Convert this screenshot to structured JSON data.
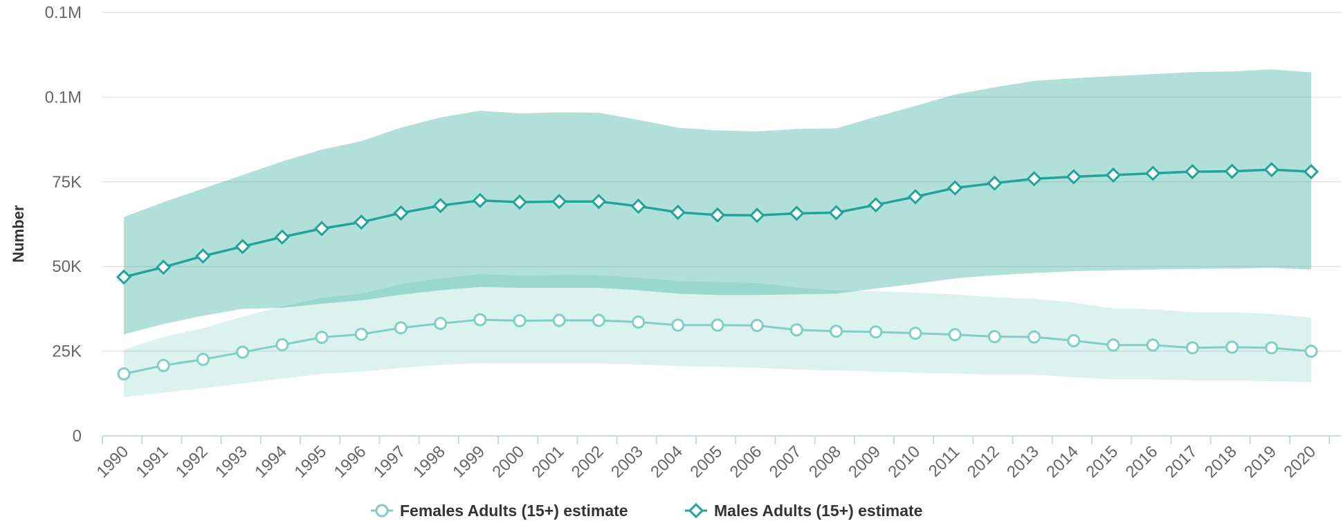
{
  "chart_data": {
    "type": "line",
    "ylabel": "Number",
    "ylim": [
      0,
      125000
    ],
    "y_ticks": [
      {
        "value": 0,
        "label": "0"
      },
      {
        "value": 25000,
        "label": "25K"
      },
      {
        "value": 50000,
        "label": "50K"
      },
      {
        "value": 75000,
        "label": "75K"
      },
      {
        "value": 100000,
        "label": "0.1M"
      },
      {
        "value": 125000,
        "label": "0.1M"
      }
    ],
    "grid": true,
    "legend_position": "bottom-center",
    "x": [
      "1990",
      "1991",
      "1992",
      "1993",
      "1994",
      "1995",
      "1996",
      "1997",
      "1998",
      "1999",
      "2000",
      "2001",
      "2002",
      "2003",
      "2004",
      "2005",
      "2006",
      "2007",
      "2008",
      "2009",
      "2010",
      "2011",
      "2012",
      "2013",
      "2014",
      "2015",
      "2016",
      "2017",
      "2018",
      "2019",
      "2020"
    ],
    "series": [
      {
        "name": "Females Adults (15+) estimate",
        "color": "#7ecfc4",
        "marker": "circle",
        "values": [
          18300,
          20800,
          22600,
          24700,
          26900,
          29100,
          30000,
          31900,
          33200,
          34300,
          34000,
          34100,
          34100,
          33600,
          32700,
          32700,
          32600,
          31300,
          30900,
          30700,
          30300,
          29900,
          29300,
          29200,
          28100,
          26800,
          26800,
          26000,
          26200,
          26000,
          25000
        ],
        "lower": [
          11500,
          12800,
          14100,
          15500,
          16900,
          18300,
          19000,
          20100,
          21000,
          21500,
          21400,
          21400,
          21400,
          21100,
          20600,
          20400,
          20100,
          19600,
          19300,
          19000,
          18700,
          18400,
          18100,
          18100,
          17300,
          16700,
          16700,
          16400,
          16400,
          16100,
          15800
        ],
        "upper": [
          25500,
          29200,
          31800,
          35200,
          38200,
          40800,
          42000,
          44800,
          46500,
          47800,
          47300,
          47500,
          47400,
          46700,
          45700,
          45400,
          45200,
          43800,
          43000,
          42700,
          42300,
          41800,
          40900,
          40500,
          39400,
          37600,
          37400,
          36500,
          36500,
          36000,
          34900
        ]
      },
      {
        "name": "Males Adults (15+) estimate",
        "color": "#1fa596",
        "marker": "diamond",
        "values": [
          46900,
          49800,
          53100,
          55900,
          58700,
          61200,
          63100,
          65800,
          68000,
          69500,
          69000,
          69200,
          69200,
          67800,
          66000,
          65200,
          65100,
          65700,
          65900,
          68200,
          70600,
          73200,
          74600,
          75900,
          76500,
          77000,
          77500,
          78000,
          78100,
          78600,
          78000
        ],
        "lower": [
          30000,
          33000,
          35500,
          37500,
          37800,
          39000,
          40000,
          41700,
          43000,
          44000,
          43700,
          43700,
          43700,
          43000,
          42000,
          41600,
          41600,
          41800,
          42000,
          43500,
          44900,
          46500,
          47400,
          48100,
          48600,
          48900,
          49100,
          49300,
          49400,
          49600,
          49100
        ],
        "upper": [
          64600,
          69000,
          73000,
          77000,
          81000,
          84500,
          87000,
          91000,
          94000,
          96000,
          95200,
          95500,
          95400,
          93300,
          91000,
          90200,
          89900,
          90600,
          90800,
          94200,
          97400,
          100800,
          102900,
          104800,
          105600,
          106200,
          106800,
          107400,
          107600,
          108200,
          107300
        ]
      }
    ]
  }
}
